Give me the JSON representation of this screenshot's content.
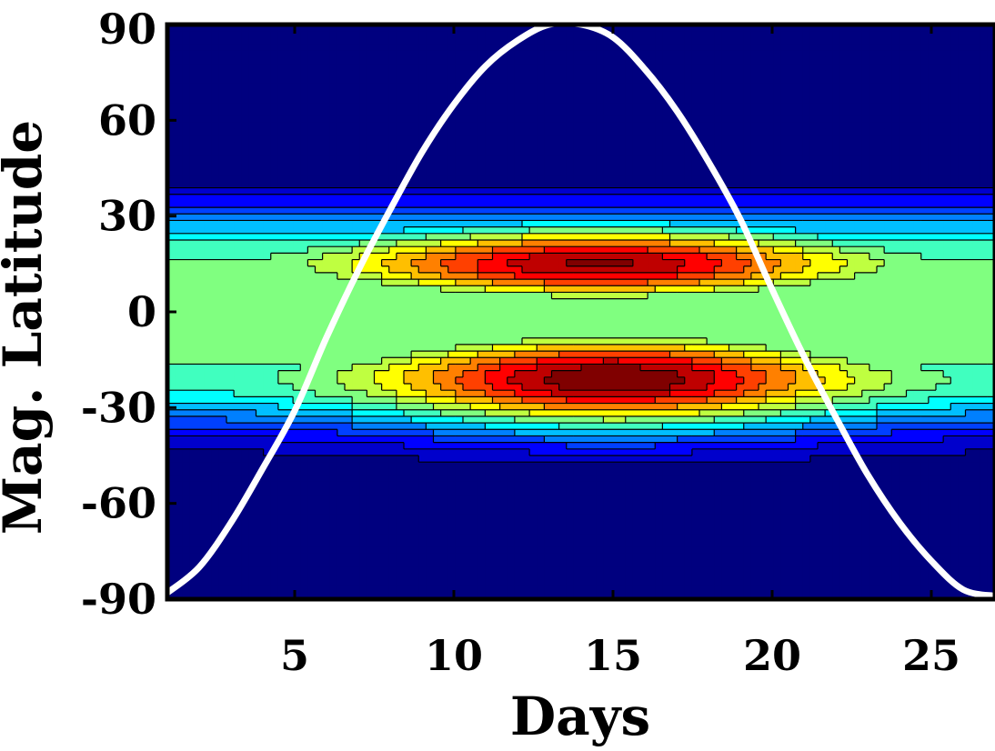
{
  "chart_data": {
    "type": "contour",
    "title": "",
    "xlabel": "Days",
    "ylabel": "Mag. Latitude",
    "xlim": [
      1,
      27
    ],
    "ylim": [
      -90,
      90
    ],
    "xticks": [
      5,
      10,
      15,
      20,
      25
    ],
    "yticks": [
      90,
      60,
      30,
      0,
      -30,
      -60,
      -90
    ],
    "colormap": [
      "#00007f",
      "#0000cc",
      "#0000ff",
      "#0040ff",
      "#0080ff",
      "#00bfff",
      "#00ffff",
      "#40ffbf",
      "#80ff80",
      "#bfff40",
      "#ffff00",
      "#ffbf00",
      "#ff8000",
      "#ff4000",
      "#ff0000",
      "#bf0000",
      "#800000"
    ],
    "bands": [
      {
        "lat": 15,
        "day": 14.5,
        "peak": 1.0
      },
      {
        "lat": -21,
        "day": 15,
        "peak": 1.05
      }
    ],
    "curve": {
      "name": "",
      "color": "#ffffff",
      "x": [
        1,
        2,
        3,
        4,
        5,
        6,
        7,
        8,
        9,
        10,
        11,
        12,
        13,
        14,
        15,
        16,
        17,
        18,
        19,
        20,
        21,
        22,
        23,
        24,
        25,
        26,
        27
      ],
      "y": [
        -88,
        -80,
        -66,
        -49,
        -31,
        -8,
        13,
        32,
        50,
        65,
        77,
        85,
        90,
        90,
        86,
        76,
        63,
        47,
        29,
        7,
        -14,
        -33,
        -51,
        -66,
        -78,
        -87,
        -89
      ]
    }
  }
}
